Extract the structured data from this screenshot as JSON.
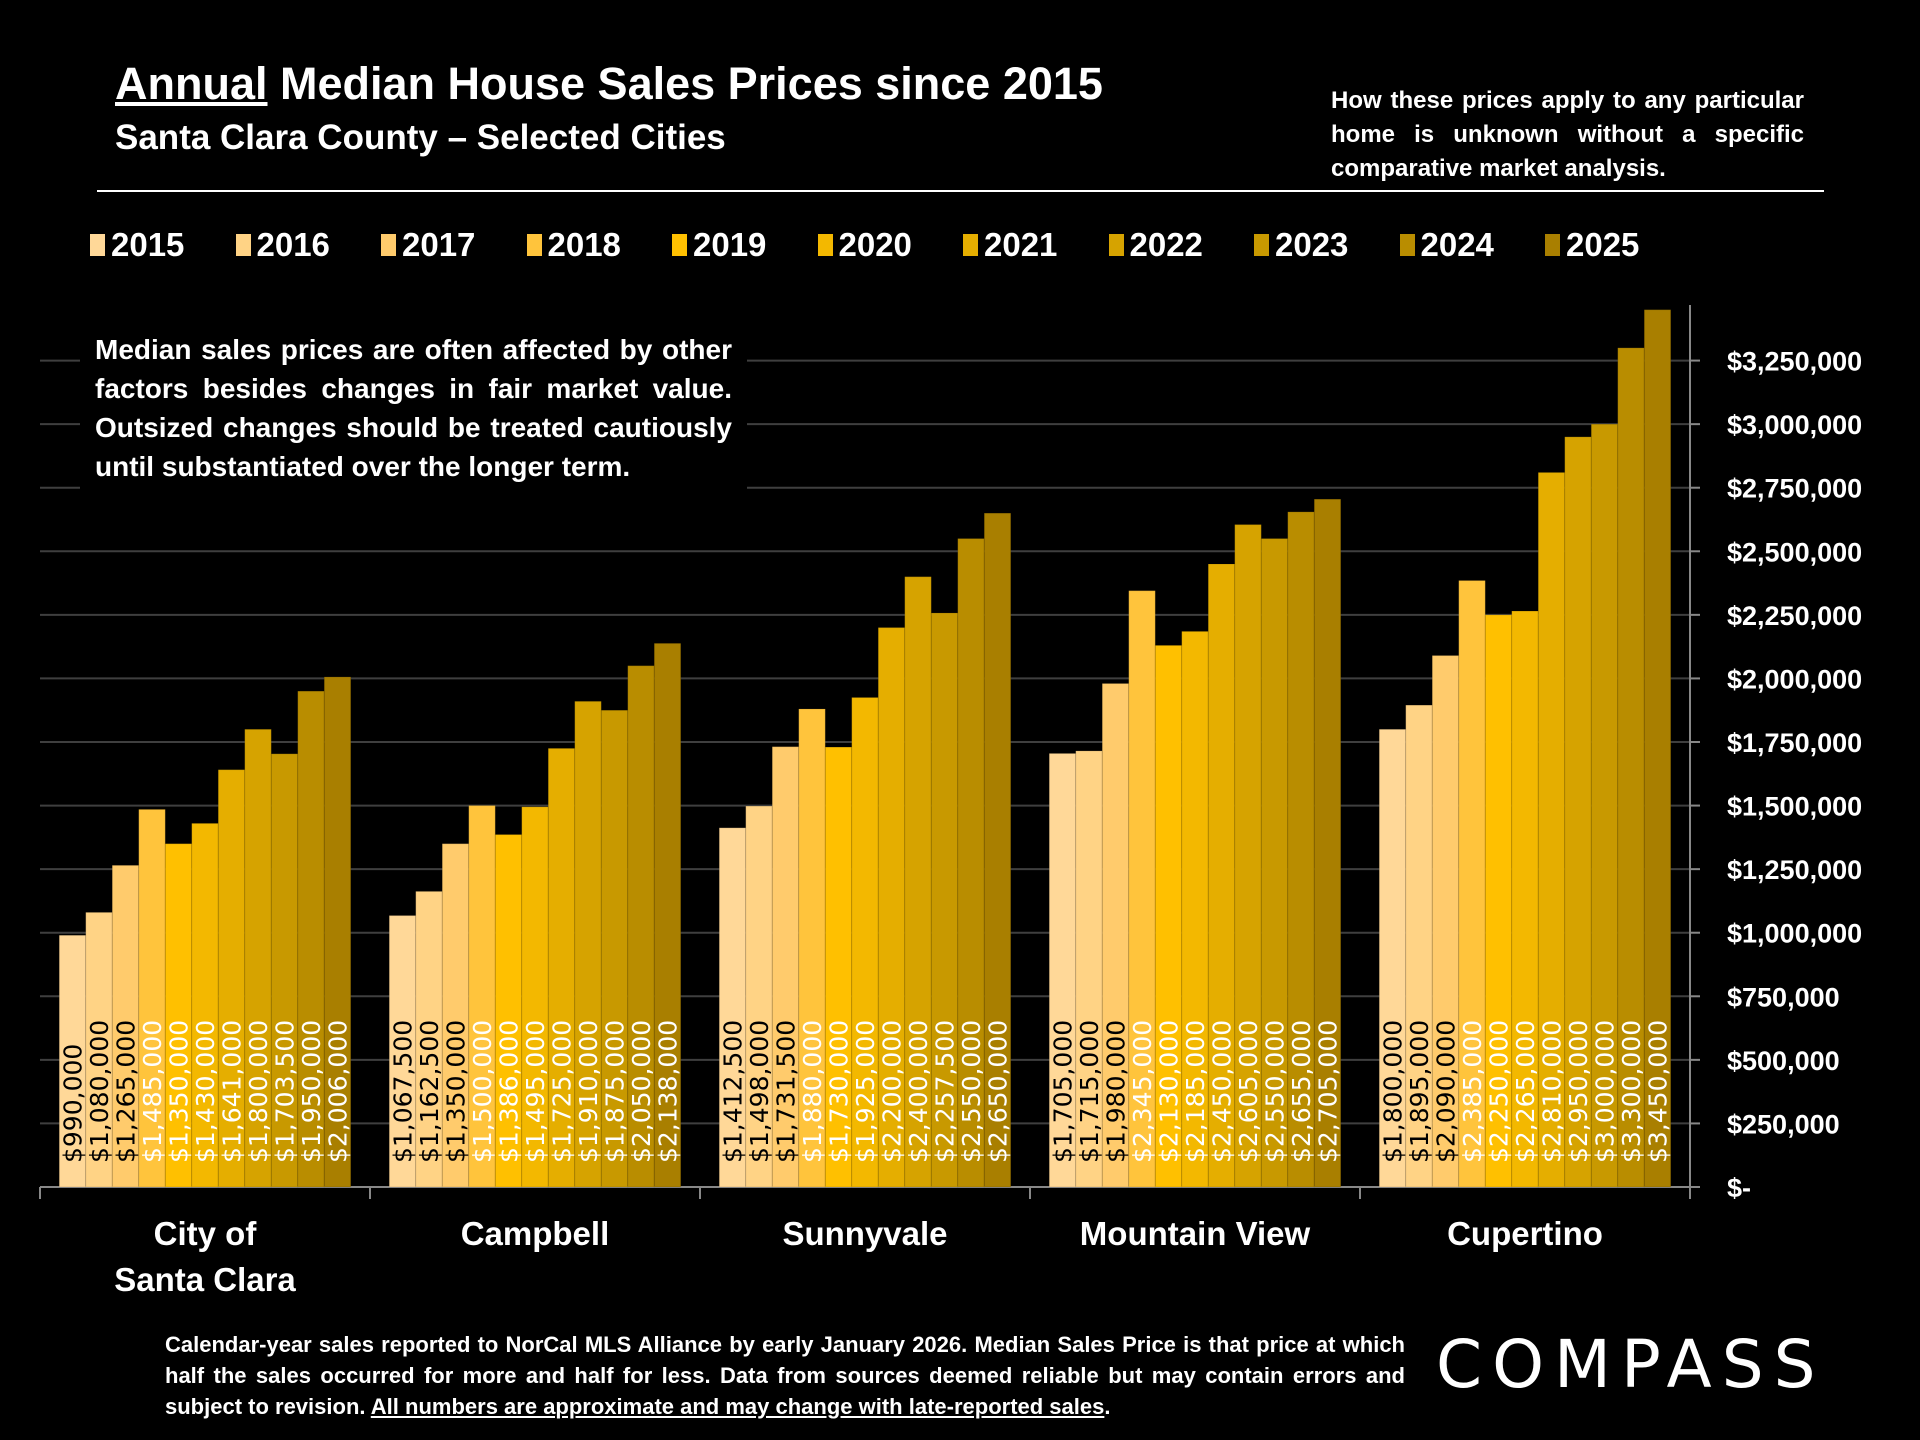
{
  "header": {
    "title_underlined": "Annual",
    "title_rest": " Median House Sales Prices since 2015",
    "subtitle": "Santa Clara County – Selected Cities",
    "note": "How these prices apply to any particular home is unknown without a specific comparative market analysis."
  },
  "caveat": "Median sales prices are often affected by other factors besides changes in fair market value. Outsized changes should be treated cautiously until substantiated over the longer term.",
  "footer": {
    "text": "Calendar-year sales reported to NorCal MLS Alliance by early January 2026. Median Sales Price is that price at which half the sales occurred for more and half for less. Data from sources deemed reliable but may contain errors and subject to revision. ",
    "underlined": "All numbers are approximate and may change with late-reported sales",
    "end": "."
  },
  "logo": "COMPASS",
  "chart_data": {
    "type": "bar",
    "title": "Annual Median House Sales Prices since 2015",
    "categories": [
      "City of\nSanta Clara",
      "Campbell",
      "Sunnyvale",
      "Mountain View",
      "Cupertino"
    ],
    "series": [
      {
        "name": "2015",
        "color": "#FFD898",
        "values": [
          990000,
          1067500,
          1412500,
          1705000,
          1800000
        ],
        "labels": [
          "$990,000",
          "$1,067,500",
          "$1,412,500",
          "$1,705,000",
          "$1,800,000"
        ]
      },
      {
        "name": "2016",
        "color": "#FFD385",
        "values": [
          1080000,
          1162500,
          1498000,
          1715000,
          1895000
        ],
        "labels": [
          "$1,080,000",
          "$1,162,500",
          "$1,498,000",
          "$1,715,000",
          "$1,895,000"
        ]
      },
      {
        "name": "2017",
        "color": "#FFCB6C",
        "values": [
          1265000,
          1350000,
          1731500,
          1980000,
          2090000
        ],
        "labels": [
          "$1,265,000",
          "$1,350,000",
          "$1,731,500",
          "$1,980,000",
          "$2,090,000"
        ]
      },
      {
        "name": "2018",
        "color": "#FFC43C",
        "values": [
          1485000,
          1500000,
          1880000,
          2345000,
          2385000
        ],
        "labels": [
          "$1,485,000",
          "$1,500,000",
          "$1,880,000",
          "$2,345,000",
          "$2,385,000"
        ]
      },
      {
        "name": "2019",
        "color": "#FFC000",
        "values": [
          1350000,
          1386000,
          1730000,
          2130000,
          2250000
        ],
        "labels": [
          "$1,350,000",
          "$1,386,000",
          "$1,730,000",
          "$2,130,000",
          "$2,250,000"
        ]
      },
      {
        "name": "2020",
        "color": "#F3B800",
        "values": [
          1430000,
          1495000,
          1925000,
          2185000,
          2265000
        ],
        "labels": [
          "$1,430,000",
          "$1,495,000",
          "$1,925,000",
          "$2,185,000",
          "$2,265,000"
        ]
      },
      {
        "name": "2021",
        "color": "#E5AE00",
        "values": [
          1641000,
          1725000,
          2200000,
          2450000,
          2810000
        ],
        "labels": [
          "$1,641,000",
          "$1,725,000",
          "$2,200,000",
          "$2,450,000",
          "$2,810,000"
        ]
      },
      {
        "name": "2022",
        "color": "#D6A300",
        "values": [
          1800000,
          1910000,
          2400000,
          2605000,
          2950000
        ],
        "labels": [
          "$1,800,000",
          "$1,910,000",
          "$2,400,000",
          "$2,605,000",
          "$2,950,000"
        ]
      },
      {
        "name": "2023",
        "color": "#C89900",
        "values": [
          1703500,
          1875000,
          2257500,
          2550000,
          3000000
        ],
        "labels": [
          "$1,703,500",
          "$1,875,000",
          "$2,257,500",
          "$2,550,000",
          "$3,000,000"
        ]
      },
      {
        "name": "2024",
        "color": "#B98D00",
        "values": [
          1950000,
          2050000,
          2550000,
          2655000,
          3300000
        ],
        "labels": [
          "$1,950,000",
          "$2,050,000",
          "$2,550,000",
          "$2,655,000",
          "$3,300,000"
        ]
      },
      {
        "name": "2025",
        "color": "#A97F00",
        "values": [
          2006000,
          2138000,
          2650000,
          2705000,
          3450000
        ],
        "labels": [
          "$2,006,000",
          "$2,138,000",
          "$2,650,000",
          "$2,705,000",
          "$3,450,000"
        ]
      }
    ],
    "yticks": [
      0,
      250000,
      500000,
      750000,
      1000000,
      1250000,
      1500000,
      1750000,
      2000000,
      2250000,
      2500000,
      2750000,
      3000000,
      3250000
    ],
    "ytick_labels": [
      "$-",
      "$250,000",
      "$500,000",
      "$750,000",
      "$1,000,000",
      "$1,250,000",
      "$1,500,000",
      "$1,750,000",
      "$2,000,000",
      "$2,250,000",
      "$2,500,000",
      "$2,750,000",
      "$3,000,000",
      "$3,250,000"
    ],
    "ylim": [
      0,
      3500000
    ],
    "y_axis_side": "right",
    "legend_position": "top",
    "grid": true
  }
}
